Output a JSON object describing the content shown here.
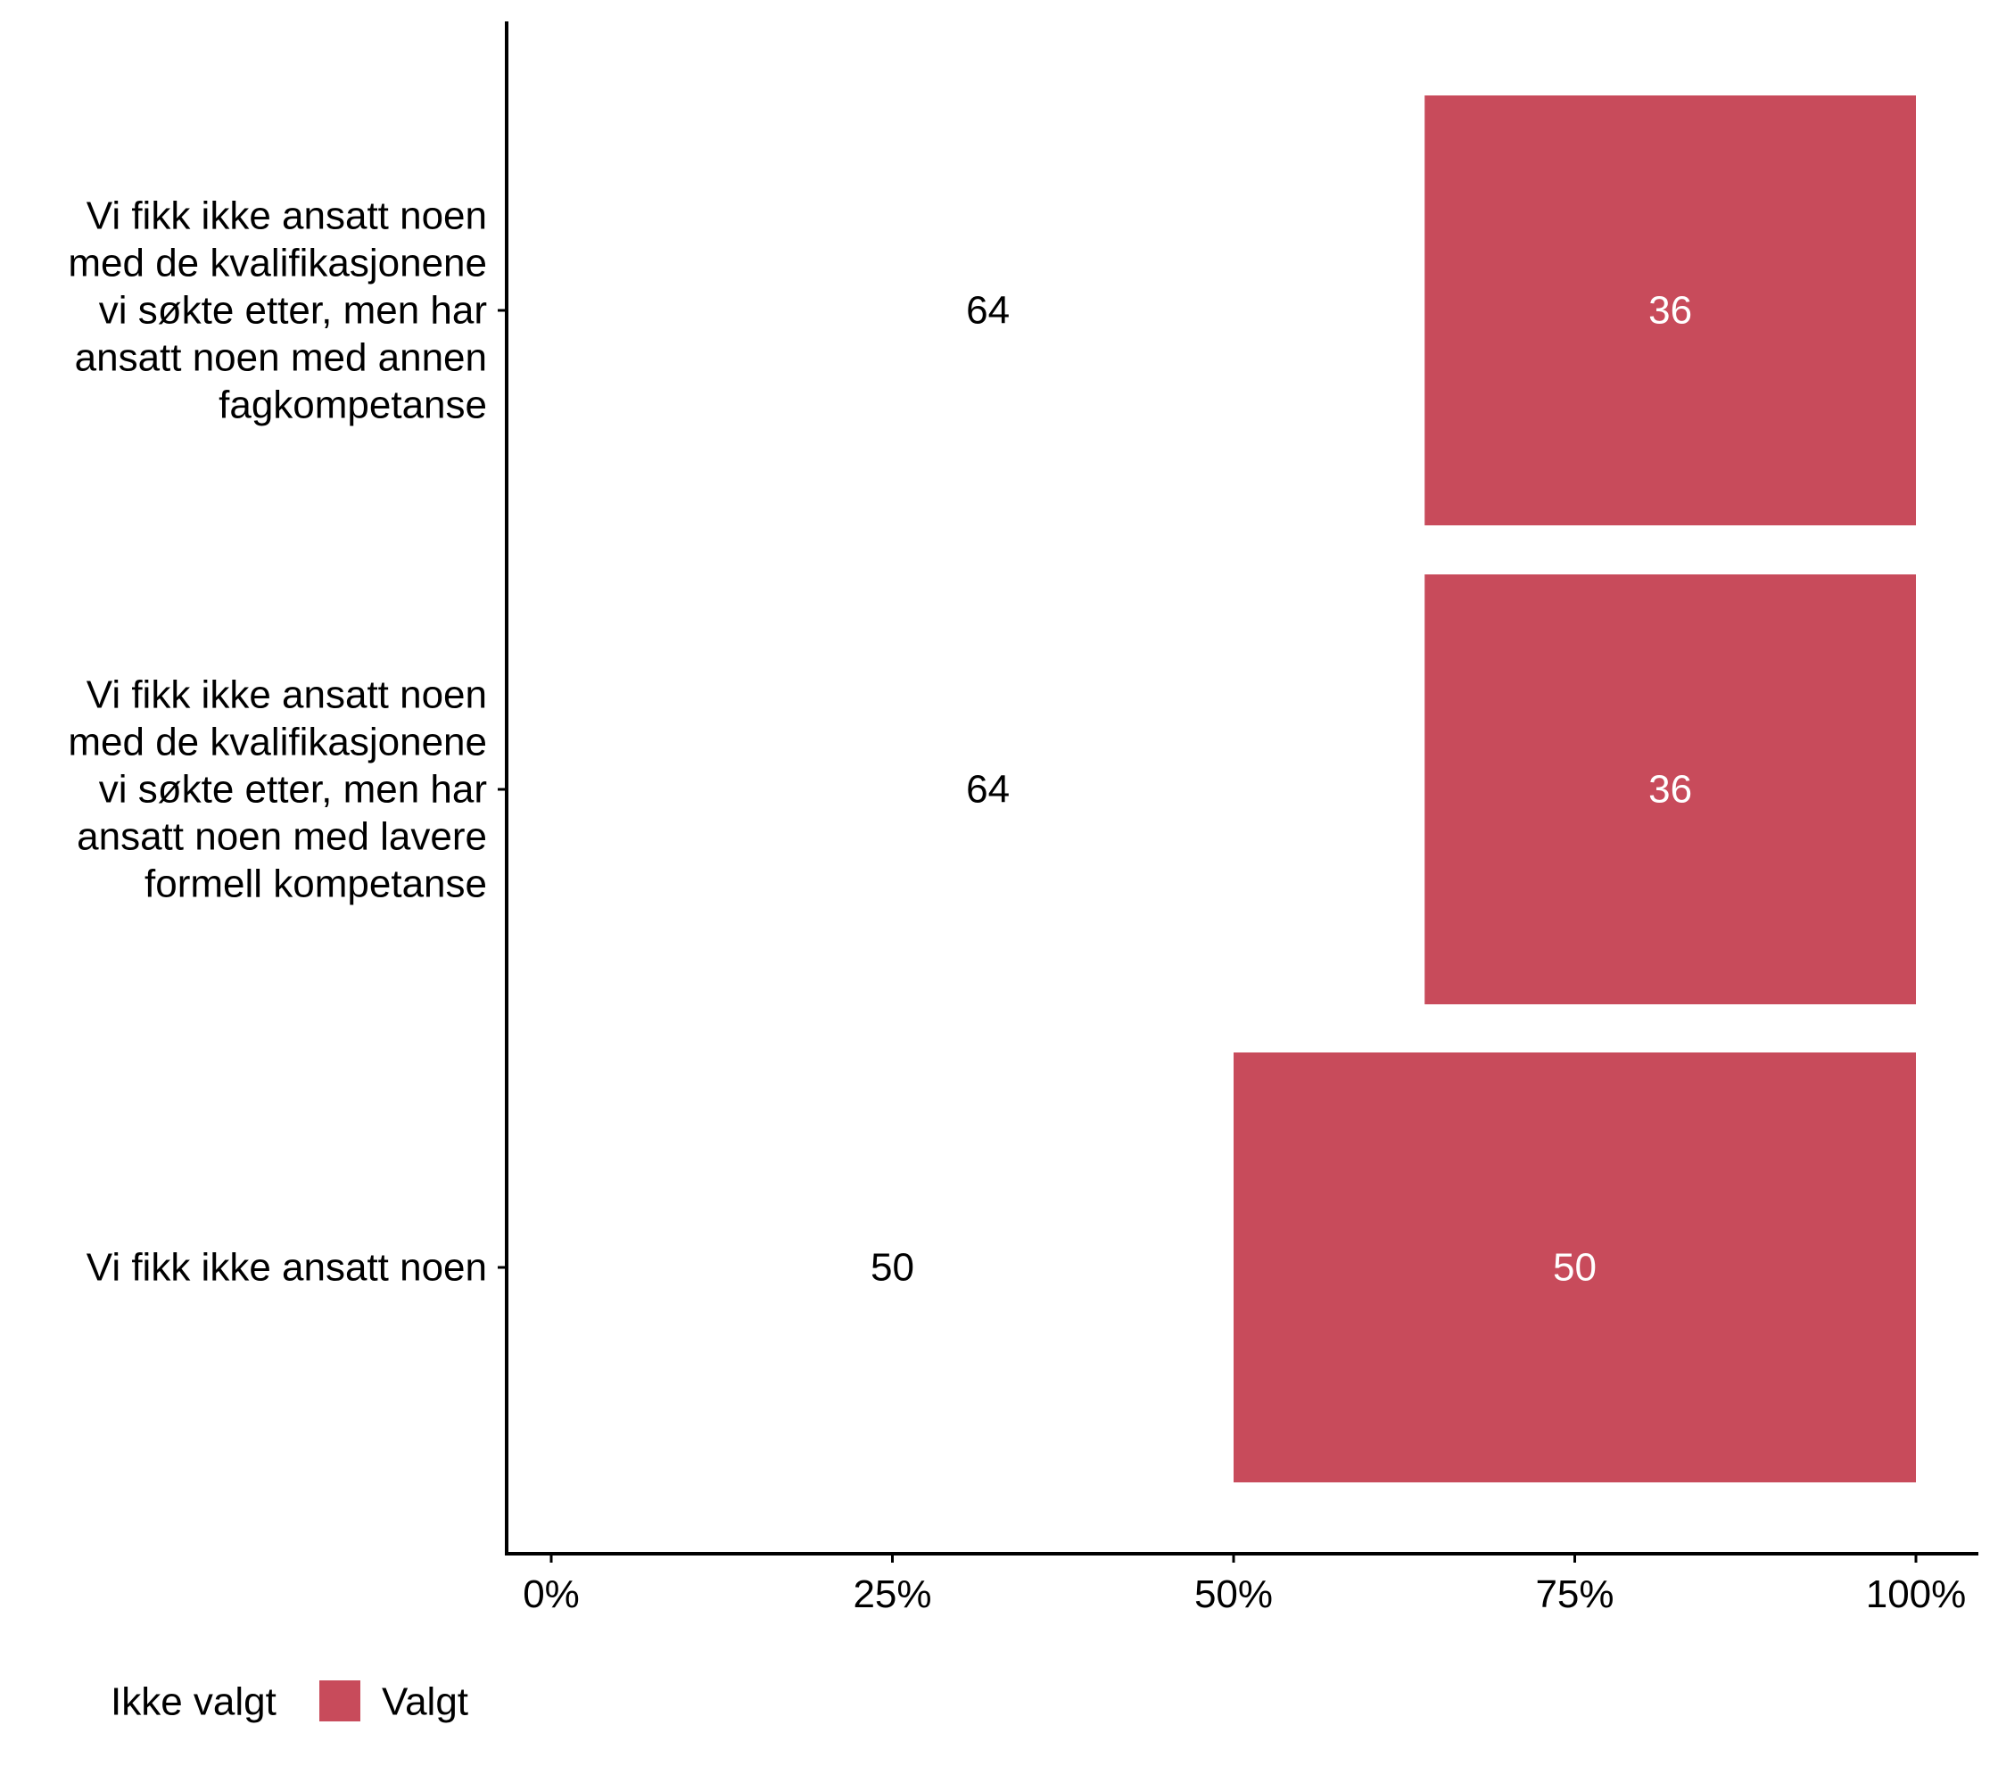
{
  "chart_data": {
    "type": "bar",
    "orientation": "horizontal",
    "stacked": true,
    "title": "",
    "xlabel": "",
    "ylabel": "",
    "xlim": [
      0,
      100
    ],
    "x_ticks": [
      0,
      25,
      50,
      75,
      100
    ],
    "x_tick_labels": [
      "0%",
      "25%",
      "50%",
      "75%",
      "100%"
    ],
    "grid": false,
    "legend_position": "bottom-left",
    "categories": [
      {
        "label": "Vi fikk ikke ansatt noen med de kvalifikasjonene vi søkte etter, men har ansatt noen med annen fagkompetanse",
        "lines": [
          "Vi fikk ikke ansatt noen",
          "med de kvalifikasjonene",
          "vi søkte etter, men har",
          "ansatt noen med annen",
          "fagkompetanse"
        ]
      },
      {
        "label": "Vi fikk ikke ansatt noen med de kvalifikasjonene vi søkte etter, men har ansatt noen med lavere formell kompetanse",
        "lines": [
          "Vi fikk ikke ansatt noen",
          "med de kvalifikasjonene",
          "vi søkte etter, men har",
          "ansatt noen med lavere",
          "formell kompetanse"
        ]
      },
      {
        "label": "Vi fikk ikke ansatt noen",
        "lines": [
          "Vi fikk ikke ansatt noen"
        ]
      }
    ],
    "series": [
      {
        "name": "Ikke valgt",
        "color": "#ffffff",
        "label_color": "#000000",
        "values": [
          64,
          64,
          50
        ],
        "labels": [
          "64",
          "64",
          "50"
        ]
      },
      {
        "name": "Valgt",
        "color": "#c84b5b",
        "label_color": "#ffffff",
        "values": [
          36,
          36,
          50
        ],
        "labels": [
          "36",
          "36",
          "50"
        ]
      }
    ]
  }
}
